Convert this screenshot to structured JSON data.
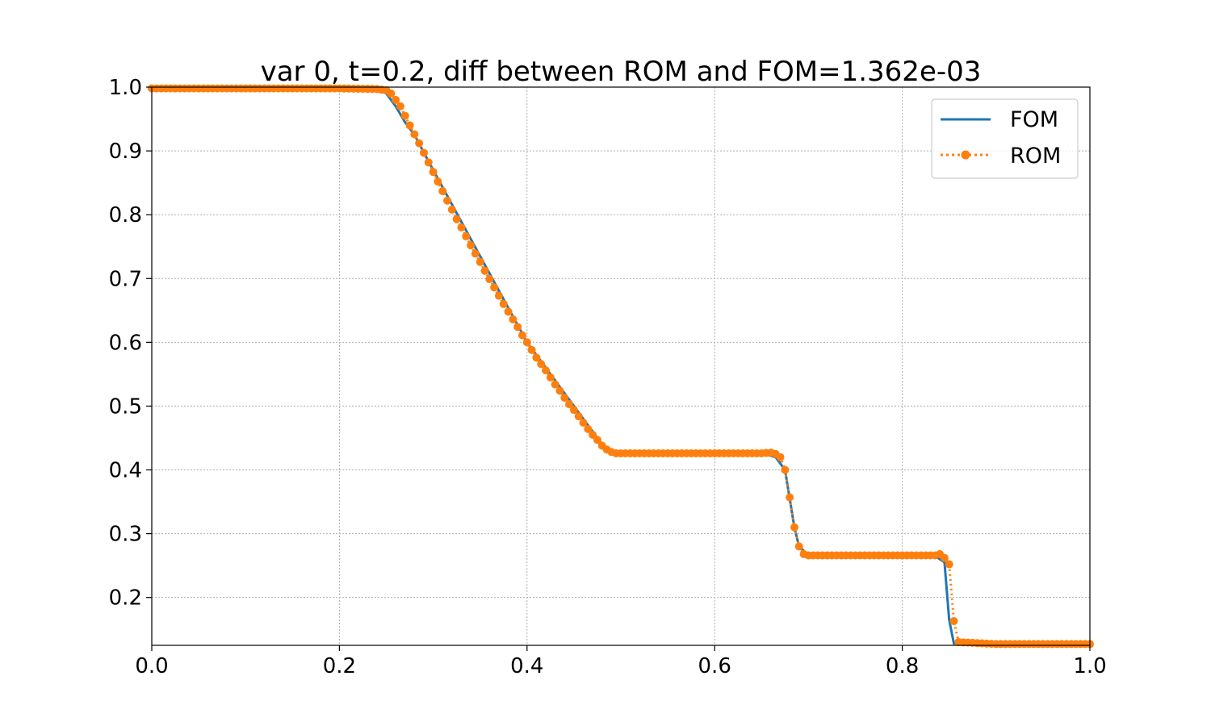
{
  "chart_data": {
    "type": "line",
    "title": "var 0, t=0.2,  diff between ROM and FOM=1.362e-03",
    "xlabel": "",
    "ylabel": "",
    "xlim": [
      0.0,
      1.0
    ],
    "ylim": [
      0.125,
      1.0
    ],
    "grid": true,
    "legend_position": "top-right",
    "x_ticks": [
      "0.0",
      "0.2",
      "0.4",
      "0.6",
      "0.8",
      "1.0"
    ],
    "y_ticks": [
      "0.2",
      "0.3",
      "0.4",
      "0.5",
      "0.6",
      "0.7",
      "0.8",
      "0.9",
      "1.0"
    ],
    "series": [
      {
        "name": "FOM",
        "style": "solid",
        "color": "#1f77b4",
        "x": [
          0.0,
          0.1,
          0.2,
          0.24,
          0.25,
          0.26,
          0.27,
          0.28,
          0.3,
          0.35,
          0.4,
          0.45,
          0.48,
          0.49,
          0.5,
          0.55,
          0.6,
          0.65,
          0.665,
          0.675,
          0.68,
          0.685,
          0.69,
          0.7,
          0.75,
          0.8,
          0.835,
          0.845,
          0.85,
          0.855,
          0.9,
          1.0
        ],
        "y": [
          0.998,
          0.998,
          0.998,
          0.997,
          0.99,
          0.97,
          0.945,
          0.925,
          0.87,
          0.735,
          0.6,
          0.5,
          0.44,
          0.428,
          0.426,
          0.426,
          0.426,
          0.426,
          0.42,
          0.4,
          0.355,
          0.31,
          0.28,
          0.266,
          0.266,
          0.266,
          0.265,
          0.255,
          0.165,
          0.128,
          0.127,
          0.127
        ]
      },
      {
        "name": "ROM",
        "style": "dotted-markers",
        "color": "#ff7f0e",
        "x": [
          0.0,
          0.05,
          0.1,
          0.15,
          0.2,
          0.24,
          0.25,
          0.255,
          0.26,
          0.265,
          0.27,
          0.275,
          0.28,
          0.285,
          0.29,
          0.295,
          0.3,
          0.305,
          0.31,
          0.315,
          0.32,
          0.325,
          0.33,
          0.335,
          0.34,
          0.345,
          0.35,
          0.355,
          0.36,
          0.365,
          0.37,
          0.375,
          0.38,
          0.385,
          0.39,
          0.395,
          0.4,
          0.405,
          0.41,
          0.415,
          0.42,
          0.425,
          0.43,
          0.435,
          0.44,
          0.445,
          0.45,
          0.455,
          0.46,
          0.465,
          0.47,
          0.475,
          0.48,
          0.485,
          0.49,
          0.495,
          0.5,
          0.55,
          0.6,
          0.63,
          0.65,
          0.66,
          0.665,
          0.67,
          0.675,
          0.68,
          0.685,
          0.69,
          0.695,
          0.7,
          0.75,
          0.8,
          0.82,
          0.83,
          0.835,
          0.84,
          0.845,
          0.85,
          0.855,
          0.86,
          0.9,
          1.0
        ],
        "y": [
          0.998,
          0.998,
          0.998,
          0.998,
          0.998,
          0.997,
          0.995,
          0.99,
          0.98,
          0.97,
          0.955,
          0.94,
          0.926,
          0.912,
          0.897,
          0.882,
          0.867,
          0.852,
          0.837,
          0.822,
          0.808,
          0.793,
          0.78,
          0.766,
          0.752,
          0.739,
          0.726,
          0.712,
          0.699,
          0.686,
          0.673,
          0.66,
          0.648,
          0.636,
          0.624,
          0.611,
          0.6,
          0.588,
          0.576,
          0.566,
          0.556,
          0.545,
          0.534,
          0.524,
          0.513,
          0.503,
          0.494,
          0.484,
          0.474,
          0.464,
          0.455,
          0.447,
          0.438,
          0.432,
          0.428,
          0.426,
          0.426,
          0.426,
          0.426,
          0.426,
          0.426,
          0.427,
          0.425,
          0.42,
          0.4,
          0.357,
          0.31,
          0.28,
          0.268,
          0.266,
          0.266,
          0.266,
          0.266,
          0.266,
          0.266,
          0.268,
          0.262,
          0.252,
          0.163,
          0.13,
          0.127,
          0.127
        ]
      }
    ]
  }
}
